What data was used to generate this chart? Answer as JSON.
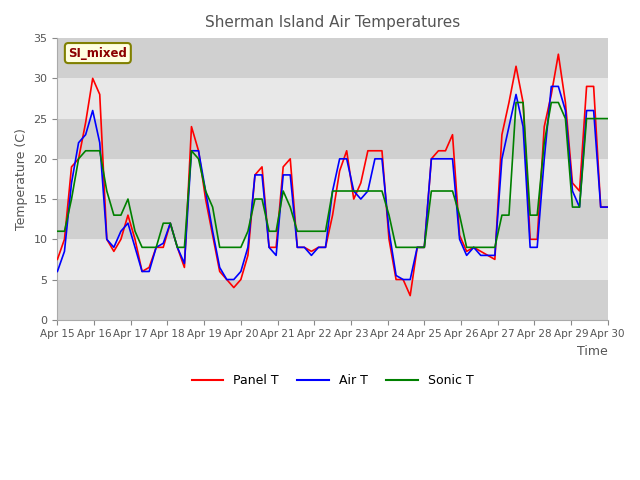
{
  "title": "Sherman Island Air Temperatures",
  "xlabel": "Time",
  "ylabel": "Temperature (C)",
  "ylim": [
    0,
    35
  ],
  "yticks": [
    0,
    5,
    10,
    15,
    20,
    25,
    30,
    35
  ],
  "annotation_text": "SI_mixed",
  "legend_labels": [
    "Panel T",
    "Air T",
    "Sonic T"
  ],
  "line_colors": [
    "red",
    "blue",
    "green"
  ],
  "title_color": "#555555",
  "title_fontsize": 11,
  "bg_color": "white",
  "plot_bg_color": "#e8e8e8",
  "band_color": "#d0d0d0",
  "xtick_labels": [
    "Apr 15",
    "Apr 16",
    "Apr 17",
    "Apr 18",
    "Apr 19",
    "Apr 20",
    "Apr 21",
    "Apr 22",
    "Apr 23",
    "Apr 24",
    "Apr 25",
    "Apr 26",
    "Apr 27",
    "Apr 28",
    "Apr 29",
    "Apr 30"
  ],
  "panel_t": [
    7.5,
    10,
    19,
    20,
    24.5,
    30,
    28,
    10,
    8.5,
    10,
    13,
    10,
    6,
    6.5,
    9,
    9,
    12,
    9,
    6.5,
    24,
    21,
    15,
    10.5,
    6,
    5,
    4,
    5,
    8,
    18,
    19,
    9,
    9,
    19,
    20,
    9,
    9,
    8.5,
    9,
    9,
    13,
    18.5,
    21,
    15,
    17,
    21,
    21,
    21,
    10,
    5,
    5,
    3,
    9,
    9,
    20,
    21,
    21,
    23,
    10.5,
    8.5,
    9,
    8.5,
    8,
    7.5,
    23,
    27,
    31.5,
    27,
    10,
    10,
    24,
    28,
    33,
    27,
    17,
    16,
    29,
    29,
    14,
    14
  ],
  "air_t": [
    6,
    8.5,
    17,
    22,
    23,
    26,
    22,
    10,
    9,
    11,
    12,
    9,
    6,
    6,
    9,
    9.5,
    12,
    9,
    7,
    21,
    21,
    16,
    11,
    6.5,
    5,
    5,
    6,
    9,
    18,
    18,
    9,
    8,
    18,
    18,
    9,
    9,
    8,
    9,
    9,
    16,
    20,
    20,
    16,
    15,
    16,
    20,
    20,
    11,
    5.5,
    5,
    5,
    9,
    9,
    20,
    20,
    20,
    20,
    10,
    8,
    9,
    8,
    8,
    8,
    20,
    24,
    28,
    24,
    9,
    9,
    20,
    29,
    29,
    26,
    16,
    14,
    26,
    26,
    14,
    14
  ],
  "sonic_t": [
    11,
    11,
    15,
    20,
    21,
    21,
    21,
    16,
    13,
    13,
    15,
    11,
    9,
    9,
    9,
    12,
    12,
    9,
    9,
    21,
    20,
    16,
    14,
    9,
    9,
    9,
    9,
    11,
    15,
    15,
    11,
    11,
    16,
    14,
    11,
    11,
    11,
    11,
    11,
    16,
    16,
    16,
    16,
    16,
    16,
    16,
    16,
    13,
    9,
    9,
    9,
    9,
    9,
    16,
    16,
    16,
    16,
    13,
    9,
    9,
    9,
    9,
    9,
    13,
    13,
    27,
    27,
    13,
    13,
    22,
    27,
    27,
    25,
    14,
    14,
    25,
    25,
    25,
    25
  ]
}
